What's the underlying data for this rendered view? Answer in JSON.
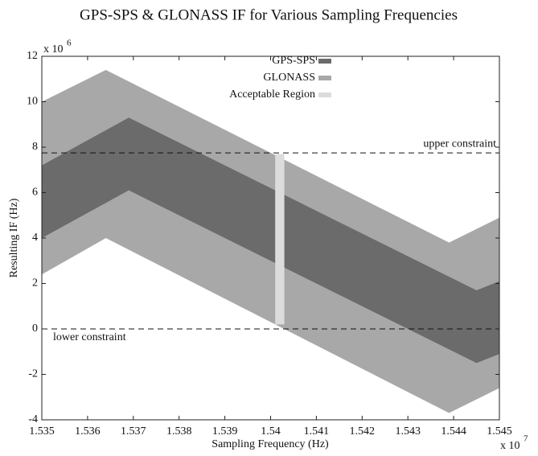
{
  "chart_data": {
    "type": "band",
    "title": "GPS-SPS & GLONASS IF for Various Sampling Frequencies",
    "xlabel": "Sampling Frequency (Hz)",
    "ylabel": "Resulting IF (Hz)",
    "x_multiplier": {
      "base": "x 10",
      "exponent": "7"
    },
    "y_multiplier": {
      "base": "x 10",
      "exponent": "6"
    },
    "xlim": [
      1.535,
      1.545
    ],
    "ylim": [
      -4,
      12
    ],
    "xticks": [
      1.535,
      1.536,
      1.537,
      1.538,
      1.539,
      1.54,
      1.541,
      1.542,
      1.543,
      1.544,
      1.545
    ],
    "yticks": [
      -4,
      -2,
      0,
      2,
      4,
      6,
      8,
      10,
      12
    ],
    "legend": "top-center",
    "series": [
      {
        "name": "GPS-SPS",
        "color": "#6b6b6b",
        "x": [
          1.535,
          1.5369,
          1.5445,
          1.545
        ],
        "upper": [
          7.2,
          9.3,
          1.7,
          2.1
        ],
        "lower": [
          4.0,
          6.1,
          -1.5,
          -1.1
        ]
      },
      {
        "name": "GLONASS",
        "color": "#a8a8a8",
        "x": [
          1.535,
          1.5364,
          1.5439,
          1.545
        ],
        "upper": [
          10.0,
          11.4,
          3.8,
          4.9
        ],
        "lower": [
          2.4,
          4.0,
          -3.7,
          -2.6
        ]
      },
      {
        "name": "Acceptable Region",
        "color": "#dcdcdc",
        "x": [
          1.5401,
          1.5403
        ],
        "upper": [
          7.7,
          7.7
        ],
        "lower": [
          0.2,
          0.2
        ]
      }
    ],
    "constraints": [
      {
        "label": "upper constraint",
        "value": 7.75
      },
      {
        "label": "lower constraint",
        "value": 0
      }
    ]
  }
}
